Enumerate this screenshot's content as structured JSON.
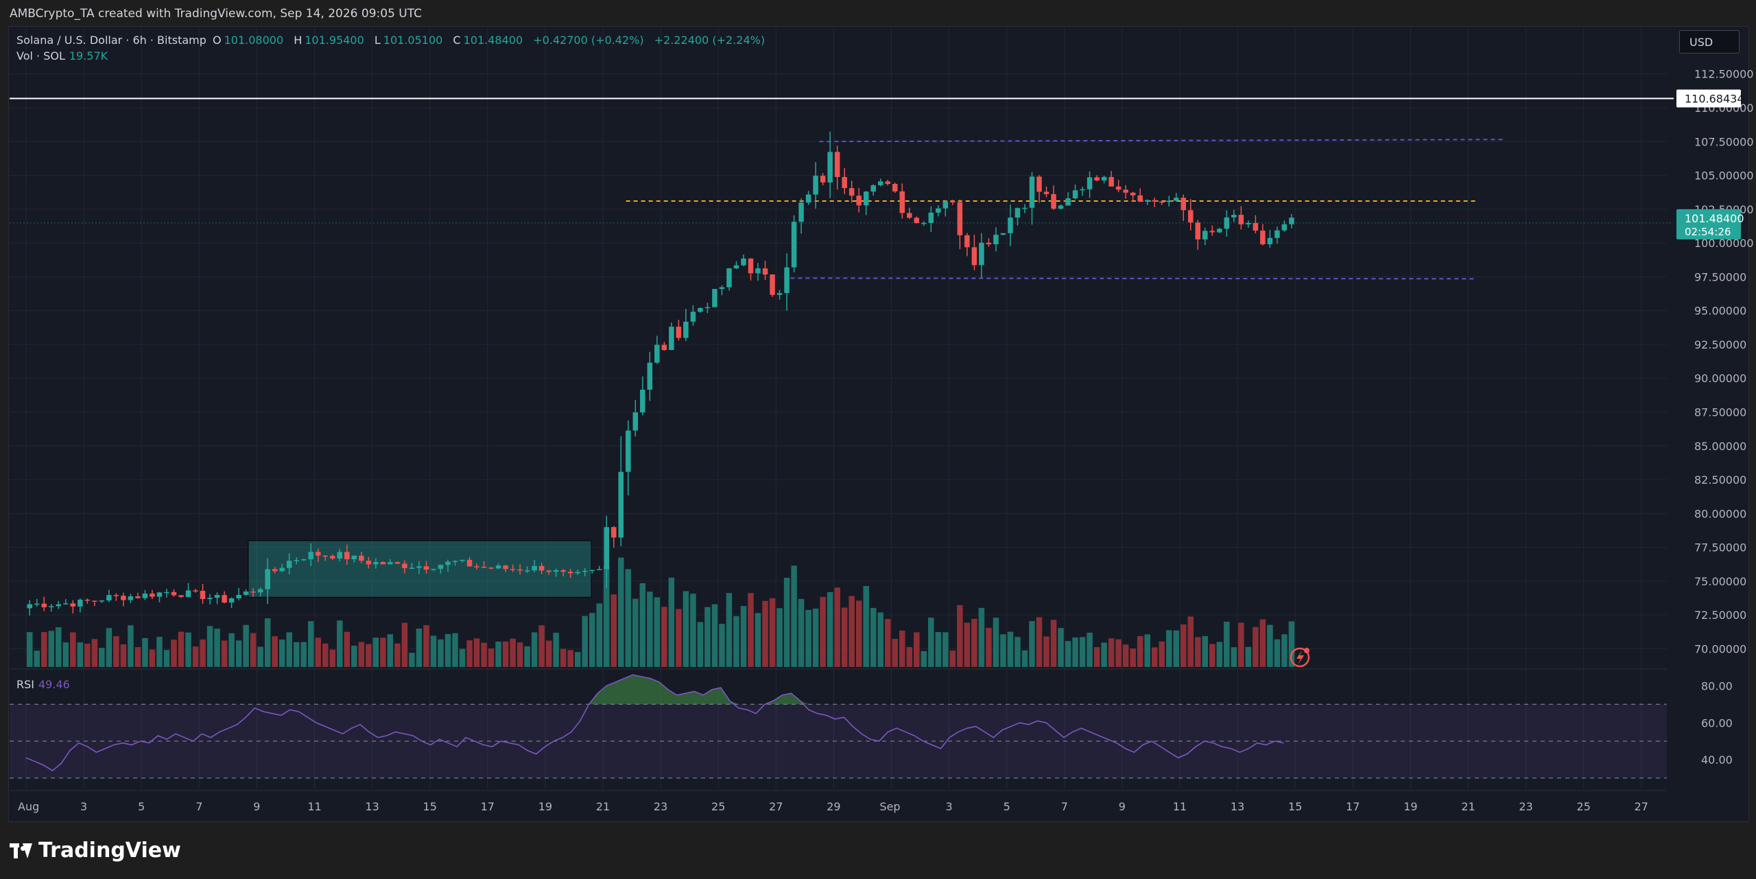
{
  "header": {
    "attribution": "AMBCrypto_TA created with TradingView.com, Sep 14, 2026 09:05 UTC"
  },
  "legend": {
    "symbol": "Solana / U.S. Dollar · 6h · Bitstamp",
    "o_label": "O",
    "o_value": "101.08000",
    "h_label": "H",
    "h_value": "101.95400",
    "l_label": "L",
    "l_value": "101.05100",
    "c_label": "C",
    "c_value": "101.48400",
    "change": "+0.42700 (+0.42%)",
    "change2": "+2.22400 (+2.24%)",
    "vol_label": "Vol · SOL",
    "vol_value": "19.57K"
  },
  "rsi_legend": {
    "label": "RSI",
    "value": "49.46"
  },
  "currency_button": "USD",
  "brand": "TradingView",
  "colors": {
    "up": "#26a69a",
    "down": "#ef5350",
    "up_vol": "#1f6e68",
    "down_vol": "#8c2f36",
    "rsi_line": "#7e57c2",
    "orange": "#f5a623",
    "purple": "#5c54c7"
  },
  "icons": [
    "lightning-icon",
    "tradingview-logo-icon"
  ],
  "chart_data": {
    "type": "candlestick",
    "interval": "6h",
    "ylim": [
      68.5,
      113.5
    ],
    "y_ticks": [
      "112.50000",
      "110.00000",
      "107.50000",
      "105.00000",
      "102.50000",
      "100.00000",
      "97.50000",
      "95.00000",
      "92.50000",
      "90.00000",
      "87.50000",
      "85.00000",
      "82.50000",
      "80.00000",
      "77.50000",
      "75.00000",
      "72.50000",
      "70.00000"
    ],
    "x_ticks": [
      "Aug",
      "3",
      "5",
      "7",
      "9",
      "11",
      "13",
      "15",
      "17",
      "19",
      "21",
      "23",
      "25",
      "27",
      "29",
      "Sep",
      "3",
      "5",
      "7",
      "9",
      "11",
      "13",
      "15",
      "17",
      "19",
      "21",
      "23",
      "25",
      "27"
    ],
    "price_labels": {
      "high_line": "110.68434",
      "last_price": "101.48400",
      "countdown": "02:54:26"
    },
    "levels": {
      "white_line": 110.68434,
      "orange_dashed": 103.1,
      "purple_top": 107.5,
      "purple_bottom": 97.4
    },
    "consolidation_box": {
      "x_from": "Aug 8",
      "x_to": "Aug 20",
      "low": 73.8,
      "high": 78.0
    },
    "closes_daily": [
      73.3,
      73.4,
      73.8,
      73.9,
      74.2,
      74.0,
      73.6,
      74.3,
      76.3,
      77.0,
      76.9,
      76.4,
      76.2,
      76.1,
      76.4,
      76.0,
      75.9,
      76.0,
      75.3,
      75.8,
      87.1,
      91.8,
      94.4,
      96.1,
      98.9,
      96.5,
      102.3,
      106.0,
      103.5,
      104.6,
      101.5,
      103.3,
      99.5,
      101.1,
      104.4,
      102.2,
      105.1,
      104.2,
      103.1,
      103.1,
      100.2,
      101.9,
      100.0,
      101.5
    ],
    "rsi": {
      "ylim": [
        24,
        88
      ],
      "ticks": [
        "80.00",
        "60.00",
        "40.00"
      ],
      "bands": [
        30,
        50,
        70
      ],
      "values": [
        41,
        39,
        37,
        34,
        38,
        45,
        49,
        47,
        44,
        46,
        48,
        49,
        48,
        50,
        49,
        53,
        51,
        54,
        52,
        50,
        54,
        52,
        55,
        57,
        59,
        63,
        68,
        66,
        65,
        64,
        67,
        66,
        63,
        60,
        58,
        56,
        54,
        57,
        59,
        55,
        52,
        53,
        55,
        54,
        53,
        50,
        48,
        51,
        49,
        47,
        52,
        50,
        48,
        47,
        50,
        49,
        48,
        45,
        43,
        47,
        50,
        52,
        55,
        61,
        70,
        76,
        80,
        82,
        84,
        86,
        85,
        84,
        82,
        78,
        75,
        76,
        77,
        75,
        78,
        79,
        72,
        68,
        67,
        65,
        70,
        72,
        75,
        76,
        72,
        67,
        65,
        64,
        62,
        63,
        58,
        54,
        51,
        50,
        55,
        57,
        55,
        53,
        50,
        48,
        46,
        52,
        55,
        57,
        58,
        55,
        52,
        56,
        58,
        60,
        59,
        61,
        60,
        56,
        52,
        55,
        57,
        55,
        53,
        51,
        49,
        46,
        44,
        48,
        50,
        47,
        44,
        41,
        43,
        47,
        50,
        49,
        47,
        46,
        44,
        46,
        49,
        48,
        50,
        49
      ]
    }
  }
}
